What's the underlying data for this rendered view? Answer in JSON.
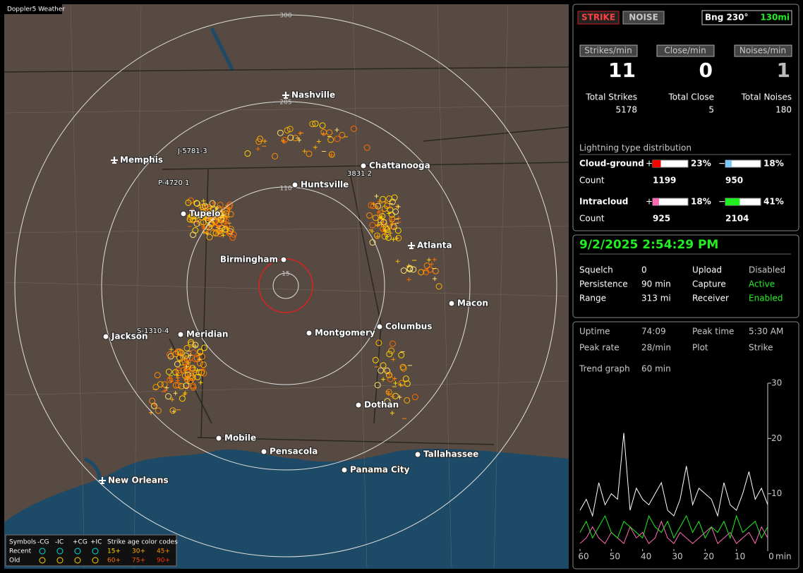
{
  "app": {
    "title": "Doppler5 Weather"
  },
  "map": {
    "range_labels": [
      "300",
      "205",
      "110",
      "15"
    ],
    "cities": [
      "Nashville",
      "Memphis",
      "Chattanooga",
      "Huntsville",
      "Tupelo",
      "Atlanta",
      "Birmingham",
      "Macon",
      "Jackson",
      "Meridian",
      "Montgomery",
      "Columbus",
      "Dothan",
      "Mobile",
      "Pensacola",
      "Tallahassee",
      "Panama City",
      "New Orleans"
    ],
    "storm_labels": [
      "J-5781-3",
      "P-4720  1",
      "3831 2",
      "S-1310-4"
    ]
  },
  "legend": {
    "symbols_label": "Symbols",
    "types": [
      "-CG",
      "-IC",
      "+CG",
      "+IC"
    ],
    "age_title": "Strike age color codes",
    "rows": [
      {
        "label": "Recent",
        "ages": [
          "15+",
          "30+",
          "45+"
        ]
      },
      {
        "label": "Old",
        "ages": [
          "60+",
          "75+",
          "90+"
        ]
      }
    ]
  },
  "status": {
    "modes": [
      "STRIKE",
      "NOISE"
    ],
    "bearing": "Bng 230°",
    "distance": "130mi"
  },
  "rates": [
    {
      "label": "Strikes/min",
      "value": 11,
      "total_label": "Total Strikes",
      "total": 5178
    },
    {
      "label": "Close/min",
      "value": 0,
      "total_label": "Total Close",
      "total": 5
    },
    {
      "label": "Noises/min",
      "value": 1,
      "total_label": "Total Noises",
      "total": 180
    }
  ],
  "distribution": {
    "title": "Lightning type distribution",
    "count_label": "Count",
    "positive_sign": "+",
    "negative_sign": "−",
    "rows": [
      {
        "name": "Cloud-ground",
        "positive": {
          "value": 23,
          "label": "23%",
          "count": 1199,
          "color": "#ff0000"
        },
        "negative": {
          "value": 18,
          "label": "18%",
          "count": 950,
          "color": "#7ec8f5"
        }
      },
      {
        "name": "Intracloud",
        "positive": {
          "value": 18,
          "label": "18%",
          "count": 925,
          "color": "#ff69b4"
        },
        "negative": {
          "value": 41,
          "label": "41%",
          "count": 2104,
          "color": "#22ee22"
        }
      }
    ]
  },
  "clock": "9/2/2025 2:54:29 PM",
  "settings": [
    {
      "label": "Squelch",
      "value": 0
    },
    {
      "label": "Persistence",
      "value": "90 min"
    },
    {
      "label": "Range",
      "value": "313 mi"
    },
    {
      "label": "Upload",
      "value": "Disabled"
    },
    {
      "label": "Capture",
      "value": "Active"
    },
    {
      "label": "Receiver",
      "value": "Enabled"
    }
  ],
  "stats": [
    {
      "label": "Uptime",
      "value": "74:09"
    },
    {
      "label": "Peak rate",
      "value": "28/min"
    },
    {
      "label": "Peak time",
      "value": "5:30 AM"
    },
    {
      "label": "Plot",
      "value": "Strike"
    }
  ],
  "trend": {
    "label": "Trend graph",
    "window": "60 min",
    "x_unit": "min",
    "xlim": [
      60,
      0
    ],
    "xticks": [
      60,
      50,
      40,
      30,
      20,
      10,
      0
    ],
    "ylim": [
      0,
      30
    ],
    "yticks": [
      10,
      20,
      30
    ],
    "x": [
      60,
      58,
      56,
      54,
      52,
      50,
      48,
      46,
      44,
      42,
      40,
      38,
      36,
      34,
      32,
      30,
      28,
      26,
      24,
      22,
      20,
      18,
      16,
      14,
      12,
      10,
      8,
      6,
      4,
      2,
      0
    ],
    "series": [
      {
        "color": "#ffffff",
        "values": [
          7,
          9,
          6,
          12,
          8,
          10,
          9,
          21,
          7,
          11,
          9,
          8,
          10,
          12,
          7,
          6,
          9,
          15,
          8,
          11,
          10,
          9,
          6,
          12,
          8,
          7,
          10,
          14,
          9,
          11,
          8
        ]
      },
      {
        "color": "#22ee22",
        "values": [
          3,
          5,
          2,
          4,
          6,
          3,
          2,
          5,
          4,
          3,
          2,
          6,
          4,
          3,
          5,
          2,
          4,
          6,
          3,
          5,
          2,
          4,
          3,
          5,
          2,
          6,
          3,
          4,
          5,
          2,
          4
        ]
      },
      {
        "color": "#ff69b4",
        "values": [
          1,
          2,
          4,
          2,
          1,
          3,
          2,
          1,
          4,
          2,
          3,
          1,
          2,
          5,
          2,
          1,
          3,
          2,
          1,
          2,
          3,
          4,
          1,
          2,
          3,
          1,
          2,
          3,
          1,
          4,
          2
        ]
      }
    ]
  }
}
